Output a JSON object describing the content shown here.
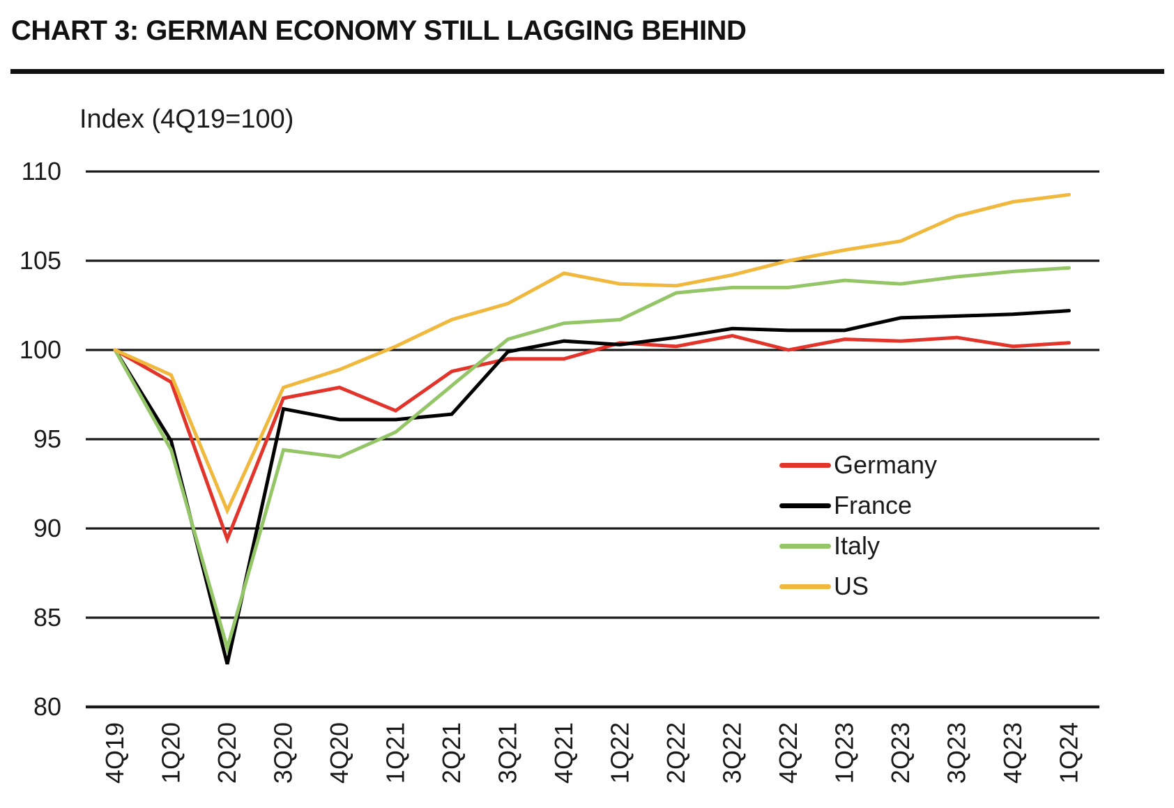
{
  "chart_data": {
    "type": "line",
    "title": "CHART 3: GERMAN ECONOMY STILL LAGGING BEHIND",
    "subtitle": "Index (4Q19=100)",
    "categories": [
      "4Q19",
      "1Q20",
      "2Q20",
      "3Q20",
      "4Q20",
      "1Q21",
      "2Q21",
      "3Q21",
      "4Q21",
      "1Q22",
      "2Q22",
      "3Q22",
      "4Q22",
      "1Q23",
      "2Q23",
      "3Q23",
      "4Q23",
      "1Q24"
    ],
    "series": [
      {
        "name": "Germany",
        "color": "#E2342A",
        "values": [
          100,
          98.2,
          89.4,
          97.3,
          97.9,
          96.6,
          98.8,
          99.5,
          99.5,
          100.4,
          100.2,
          100.8,
          100.0,
          100.6,
          100.5,
          100.7,
          100.2,
          100.4
        ]
      },
      {
        "name": "France",
        "color": "#000000",
        "values": [
          100,
          94.9,
          82.4,
          96.7,
          96.1,
          96.1,
          96.4,
          99.9,
          100.5,
          100.3,
          100.7,
          101.2,
          101.1,
          101.1,
          101.8,
          101.9,
          102.0,
          102.2
        ]
      },
      {
        "name": "Italy",
        "color": "#94C566",
        "values": [
          100,
          94.4,
          83.3,
          94.4,
          94.0,
          95.4,
          98.0,
          100.6,
          101.5,
          101.7,
          103.2,
          103.5,
          103.5,
          103.9,
          103.7,
          104.1,
          104.4,
          104.6
        ]
      },
      {
        "name": "US",
        "color": "#F0B83C",
        "values": [
          100,
          98.6,
          91.0,
          97.9,
          98.9,
          100.2,
          101.7,
          102.6,
          104.3,
          103.7,
          103.6,
          104.2,
          105.0,
          105.6,
          106.1,
          107.5,
          108.3,
          108.7
        ]
      }
    ],
    "ylim": [
      80,
      110
    ],
    "yticks": [
      80,
      85,
      90,
      95,
      100,
      105,
      110
    ],
    "grid": true,
    "legend_position": "middle-right",
    "axis_color": "#1a1a1a"
  }
}
